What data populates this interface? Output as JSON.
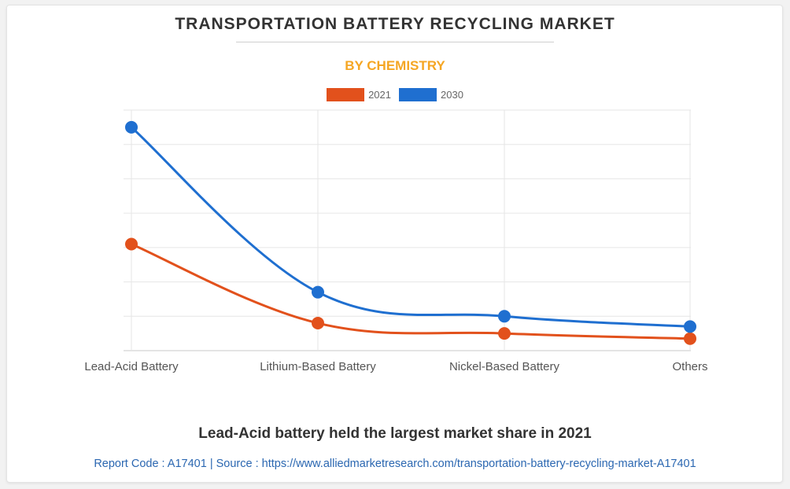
{
  "header": {
    "title": "TRANSPORTATION BATTERY RECYCLING MARKET",
    "subtitle": "BY CHEMISTRY"
  },
  "footer": {
    "caption": "Lead-Acid battery held the largest market share in 2021",
    "source": "Report Code : A17401  |  Source : https://www.alliedmarketresearch.com/transportation-battery-recycling-market-A17401"
  },
  "colors": {
    "series_2021": "#e2511c",
    "series_2030": "#1f6fd0",
    "subtitle": "#f5a623",
    "grid": "#e6e6e6"
  },
  "chart_data": {
    "type": "line",
    "categories": [
      "Lead-Acid Battery",
      "Lithium-Based Battery",
      "Nickel-Based Battery",
      "Others"
    ],
    "series": [
      {
        "name": "2021",
        "values": [
          31,
          8,
          5,
          3.5
        ]
      },
      {
        "name": "2030",
        "values": [
          65,
          17,
          10,
          7
        ]
      }
    ],
    "ylim": [
      0,
      70
    ],
    "grid": true,
    "legend_position": "top-center",
    "smooth": true
  }
}
